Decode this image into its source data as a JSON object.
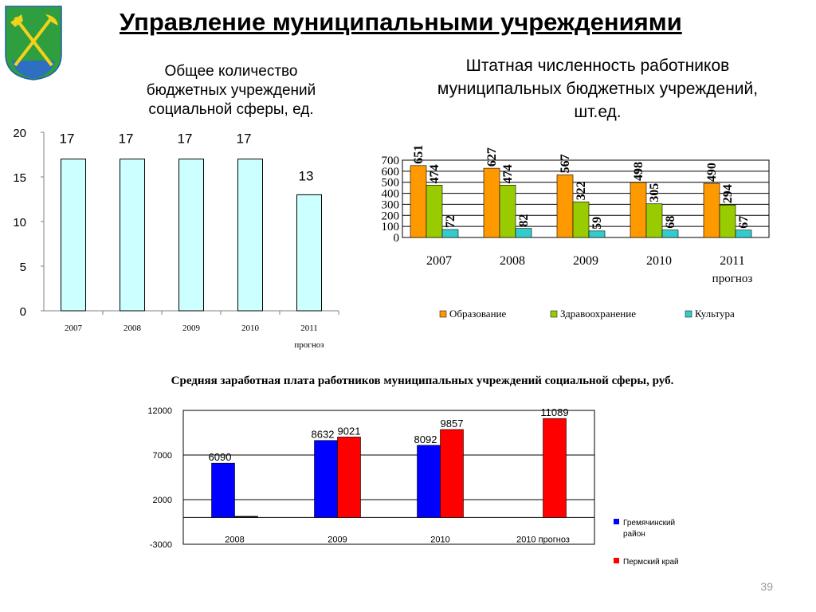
{
  "page": {
    "title": "Управление муниципальными учреждениями",
    "page_number": "39",
    "emblem_icon": "coat-of-arms-icon",
    "colors": {
      "emblem_green": "#2e9e3e",
      "emblem_blue": "#2f6fc1",
      "emblem_yellow": "#f2d21a"
    }
  },
  "chart_data": [
    {
      "type": "bar",
      "title": "Общее количество бюджетных учреждений социальной сферы, ед.",
      "categories": [
        "2007",
        "2008",
        "2009",
        "2010",
        "2011"
      ],
      "category_sublabels": [
        "",
        "",
        "",
        "",
        "прогноз"
      ],
      "values": [
        17,
        17,
        17,
        17,
        13
      ],
      "ylim": [
        0,
        20
      ],
      "yticks": [
        0,
        5,
        10,
        15,
        20
      ],
      "grid": false,
      "colors": {
        "bar": "#ccffff"
      }
    },
    {
      "type": "bar",
      "title": "Штатная численность работников муниципальных бюджетных учреждений, шт.ед.",
      "categories": [
        "2007",
        "2008",
        "2009",
        "2010",
        "2011"
      ],
      "category_sublabels": [
        "",
        "",
        "",
        "",
        "прогноз"
      ],
      "series": [
        {
          "name": "Образование",
          "values": [
            651,
            627,
            567,
            498,
            490
          ],
          "color": "#ff9900"
        },
        {
          "name": "Здравоохранение",
          "values": [
            474,
            474,
            322,
            305,
            294
          ],
          "color": "#99cc00"
        },
        {
          "name": "Культура",
          "values": [
            72,
            82,
            59,
            68,
            67
          ],
          "color": "#33cccc"
        }
      ],
      "ylim": [
        0,
        700
      ],
      "yticks": [
        0,
        100,
        200,
        300,
        400,
        500,
        600,
        700
      ],
      "grid": true,
      "legend": "bottom"
    },
    {
      "type": "bar",
      "title": "Средняя заработная плата работников муниципальных учреждений социальной сферы, руб.",
      "categories": [
        "2008",
        "2009",
        "2010",
        "2010 прогноз"
      ],
      "series": [
        {
          "name": "Гремячинский район",
          "values": [
            6090,
            8632,
            8092,
            null
          ],
          "color": "#0000ff"
        },
        {
          "name": "Пермский край",
          "values": [
            0,
            9021,
            9857,
            11089
          ],
          "color": "#ff0000"
        }
      ],
      "ylim": [
        -3000,
        12000
      ],
      "yticks": [
        -3000,
        2000,
        7000,
        12000
      ],
      "grid": true,
      "legend": "right"
    }
  ]
}
